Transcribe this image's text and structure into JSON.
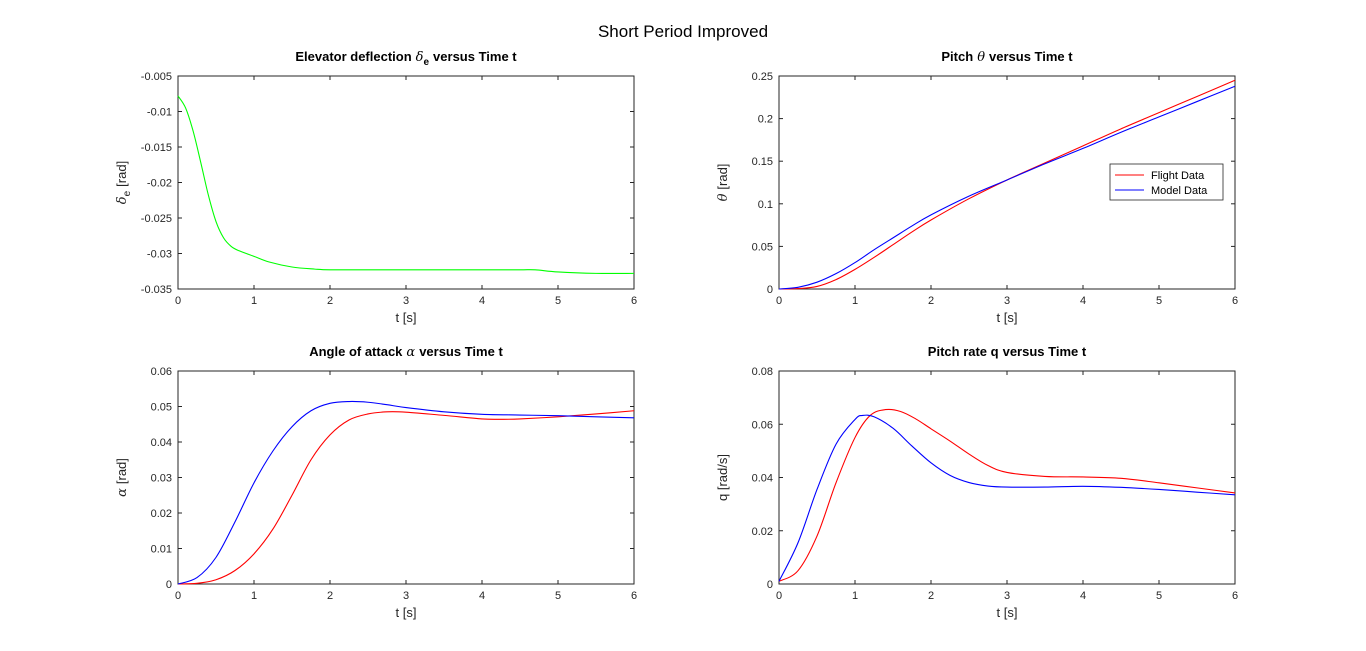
{
  "figure": {
    "title": "Short Period Improved"
  },
  "colors": {
    "flight": "#ff0000",
    "model": "#0000ff",
    "elevator": "#00ff00",
    "axis": "#262626"
  },
  "legend": {
    "placement": "right-middle",
    "entries": [
      "Flight Data",
      "Model Data"
    ]
  },
  "chart_data": [
    {
      "type": "line",
      "title_text": "Elevator deflection",
      "title_symbol": "δ",
      "title_sub": "e",
      "title_rest": "versus Time t",
      "xlabel": "t [s]",
      "ylabel_symbol": "δ",
      "ylabel_sub": "e",
      "ylabel_rest": "[rad]",
      "xlim": [
        0,
        6
      ],
      "ylim": [
        -0.035,
        -0.005
      ],
      "xticks": [
        0,
        1,
        2,
        3,
        4,
        5,
        6
      ],
      "yticks": [
        -0.035,
        -0.03,
        -0.025,
        -0.02,
        -0.015,
        -0.01,
        -0.005
      ],
      "ytick_labels": [
        "-0.035",
        "-0.03",
        "-0.025",
        "-0.02",
        "-0.015",
        "-0.01",
        "-0.005"
      ],
      "series": [
        {
          "color": "elevator",
          "x": [
            0,
            0.1,
            0.2,
            0.3,
            0.4,
            0.5,
            0.6,
            0.7,
            0.8,
            1.0,
            1.2,
            1.5,
            1.8,
            2.0,
            2.5,
            3.0,
            3.5,
            4.0,
            4.5,
            4.7,
            5.0,
            5.5,
            6.0
          ],
          "y": [
            -0.0078,
            -0.0095,
            -0.0128,
            -0.0172,
            -0.0218,
            -0.0255,
            -0.0278,
            -0.029,
            -0.0296,
            -0.0304,
            -0.0312,
            -0.0319,
            -0.0322,
            -0.0323,
            -0.0323,
            -0.0323,
            -0.0323,
            -0.0323,
            -0.0323,
            -0.0323,
            -0.0326,
            -0.0328,
            -0.0328
          ]
        }
      ]
    },
    {
      "type": "line",
      "title_text": "Pitch",
      "title_symbol": "θ",
      "title_sub": "",
      "title_rest": "versus Time t",
      "xlabel": "t [s]",
      "ylabel_symbol": "θ",
      "ylabel_sub": "",
      "ylabel_rest": "[rad]",
      "xlim": [
        0,
        6
      ],
      "ylim": [
        0,
        0.25
      ],
      "xticks": [
        0,
        1,
        2,
        3,
        4,
        5,
        6
      ],
      "yticks": [
        0,
        0.05,
        0.1,
        0.15,
        0.2,
        0.25
      ],
      "ytick_labels": [
        "0",
        "0.05",
        "0.1",
        "0.15",
        "0.2",
        "0.25"
      ],
      "has_legend": true,
      "series": [
        {
          "name": "Flight Data",
          "color": "flight",
          "x": [
            0,
            0.25,
            0.5,
            0.75,
            1.0,
            1.25,
            1.5,
            1.75,
            2.0,
            2.5,
            3.0,
            3.5,
            4.0,
            4.5,
            5.0,
            5.5,
            6.0
          ],
          "y": [
            0,
            0.0005,
            0.003,
            0.011,
            0.023,
            0.037,
            0.052,
            0.067,
            0.081,
            0.106,
            0.128,
            0.148,
            0.168,
            0.188,
            0.207,
            0.226,
            0.245
          ]
        },
        {
          "name": "Model Data",
          "color": "model",
          "x": [
            0,
            0.25,
            0.5,
            0.75,
            1.0,
            1.25,
            1.5,
            1.75,
            2.0,
            2.5,
            3.0,
            3.5,
            4.0,
            4.5,
            5.0,
            5.5,
            6.0
          ],
          "y": [
            0,
            0.002,
            0.008,
            0.018,
            0.031,
            0.046,
            0.06,
            0.074,
            0.087,
            0.109,
            0.128,
            0.147,
            0.165,
            0.184,
            0.202,
            0.22,
            0.238
          ]
        }
      ]
    },
    {
      "type": "line",
      "title_text": "Angle of attack",
      "title_symbol": "α",
      "title_sub": "",
      "title_rest": "versus Time t",
      "xlabel": "t [s]",
      "ylabel_symbol": "α",
      "ylabel_sub": "",
      "ylabel_rest": "[rad]",
      "xlim": [
        0,
        6
      ],
      "ylim": [
        0,
        0.06
      ],
      "xticks": [
        0,
        1,
        2,
        3,
        4,
        5,
        6
      ],
      "yticks": [
        0,
        0.01,
        0.02,
        0.03,
        0.04,
        0.05,
        0.06
      ],
      "ytick_labels": [
        "0",
        "0.01",
        "0.02",
        "0.03",
        "0.04",
        "0.05",
        "0.06"
      ],
      "series": [
        {
          "name": "Flight Data",
          "color": "flight",
          "x": [
            0,
            0.25,
            0.5,
            0.75,
            1.0,
            1.25,
            1.5,
            1.75,
            2.0,
            2.25,
            2.5,
            2.75,
            3.0,
            3.5,
            4.0,
            4.25,
            4.5,
            5.0,
            5.5,
            6.0
          ],
          "y": [
            0,
            0.0002,
            0.0012,
            0.0038,
            0.0085,
            0.0155,
            0.025,
            0.035,
            0.042,
            0.0462,
            0.0479,
            0.0485,
            0.0484,
            0.0475,
            0.0465,
            0.0464,
            0.0465,
            0.0471,
            0.0479,
            0.0488
          ]
        },
        {
          "name": "Model Data",
          "color": "model",
          "x": [
            0,
            0.25,
            0.5,
            0.75,
            1.0,
            1.25,
            1.5,
            1.75,
            2.0,
            2.25,
            2.5,
            2.75,
            3.0,
            3.5,
            4.0,
            4.5,
            5.0,
            5.5,
            6.0
          ],
          "y": [
            0,
            0.0018,
            0.0075,
            0.0175,
            0.0285,
            0.0375,
            0.0443,
            0.0488,
            0.0509,
            0.0514,
            0.0512,
            0.0505,
            0.0497,
            0.0485,
            0.0478,
            0.0476,
            0.0474,
            0.0471,
            0.0468
          ]
        }
      ]
    },
    {
      "type": "line",
      "title_text": "Pitch rate q",
      "title_symbol": "",
      "title_sub": "",
      "title_rest": "versus Time t",
      "xlabel": "t [s]",
      "ylabel_symbol": "",
      "ylabel_sub": "",
      "ylabel_rest": "q [rad/s]",
      "xlim": [
        0,
        6
      ],
      "ylim": [
        0,
        0.08
      ],
      "xticks": [
        0,
        1,
        2,
        3,
        4,
        5,
        6
      ],
      "yticks": [
        0,
        0.02,
        0.04,
        0.06,
        0.08
      ],
      "ytick_labels": [
        "0",
        "0.02",
        "0.04",
        "0.06",
        "0.08"
      ],
      "series": [
        {
          "name": "Flight Data",
          "color": "flight",
          "x": [
            0,
            0.25,
            0.5,
            0.75,
            1.0,
            1.2,
            1.4,
            1.6,
            1.8,
            2.0,
            2.25,
            2.5,
            2.75,
            3.0,
            3.5,
            4.0,
            4.5,
            5.0,
            5.5,
            6.0
          ],
          "y": [
            0.001,
            0.005,
            0.018,
            0.038,
            0.055,
            0.0633,
            0.0655,
            0.0648,
            0.062,
            0.0583,
            0.0537,
            0.0488,
            0.0445,
            0.0419,
            0.0404,
            0.0402,
            0.0397,
            0.038,
            0.0361,
            0.0342
          ]
        },
        {
          "name": "Model Data",
          "color": "model",
          "x": [
            0,
            0.25,
            0.5,
            0.75,
            1.0,
            1.1,
            1.25,
            1.5,
            1.75,
            2.0,
            2.25,
            2.5,
            2.75,
            3.0,
            3.5,
            4.0,
            4.5,
            5.0,
            5.5,
            6.0
          ],
          "y": [
            0.001,
            0.0155,
            0.0355,
            0.0525,
            0.0618,
            0.0633,
            0.0628,
            0.0585,
            0.0518,
            0.0455,
            0.0408,
            0.0381,
            0.0368,
            0.0364,
            0.0364,
            0.0367,
            0.0363,
            0.0355,
            0.0345,
            0.0335
          ]
        }
      ]
    }
  ]
}
